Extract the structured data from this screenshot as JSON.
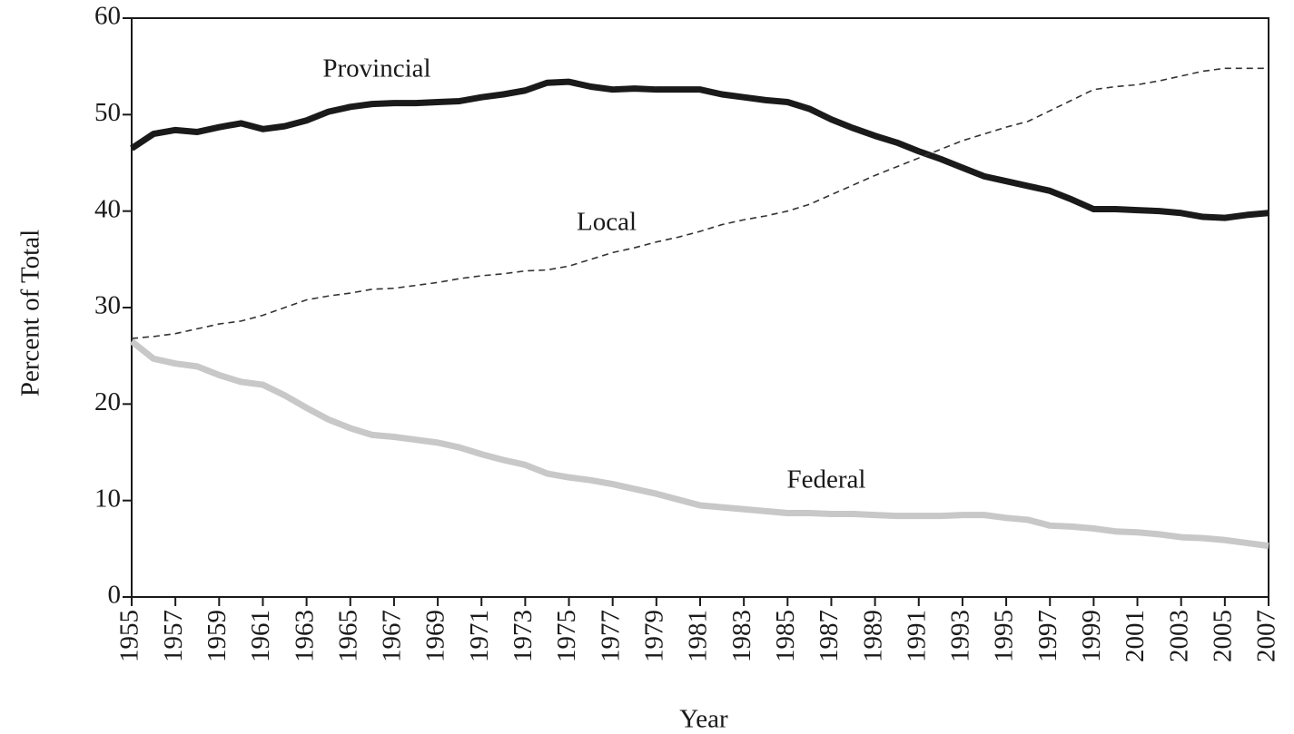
{
  "chart_data": {
    "type": "line",
    "xlabel": "Year",
    "ylabel": "Percent of Total",
    "x": [
      1955,
      1956,
      1957,
      1958,
      1959,
      1960,
      1961,
      1962,
      1963,
      1964,
      1965,
      1966,
      1967,
      1968,
      1969,
      1970,
      1971,
      1972,
      1973,
      1974,
      1975,
      1976,
      1977,
      1978,
      1979,
      1980,
      1981,
      1982,
      1983,
      1984,
      1985,
      1986,
      1987,
      1988,
      1989,
      1990,
      1991,
      1992,
      1993,
      1994,
      1995,
      1996,
      1997,
      1998,
      1999,
      2000,
      2001,
      2002,
      2003,
      2004,
      2005,
      2006,
      2007
    ],
    "series": [
      {
        "name": "Provincial",
        "color": "#1a1a1a",
        "line_style": "solid",
        "values": [
          46.5,
          48,
          48.4,
          48.2,
          48.7,
          49.1,
          48.5,
          48.8,
          49.4,
          50.3,
          50.8,
          51.1,
          51.2,
          51.2,
          51.3,
          51.4,
          51.8,
          52.1,
          52.5,
          53.3,
          53.4,
          52.9,
          52.6,
          52.7,
          52.6,
          52.6,
          52.6,
          52.1,
          51.8,
          51.5,
          51.3,
          50.6,
          49.5,
          48.6,
          47.8,
          47.1,
          46.2,
          45.4,
          44.5,
          43.6,
          43.1,
          42.6,
          42.1,
          41.2,
          40.2,
          40.2,
          40.1,
          40.0,
          39.8,
          39.4,
          39.3,
          39.6,
          39.8
        ]
      },
      {
        "name": "Local",
        "color": "#333333",
        "line_style": "dashed",
        "values": [
          26.8,
          27.0,
          27.3,
          27.8,
          28.3,
          28.6,
          29.2,
          30.0,
          30.8,
          31.2,
          31.5,
          31.9,
          32.0,
          32.3,
          32.6,
          33.0,
          33.3,
          33.5,
          33.8,
          33.9,
          34.3,
          35.0,
          35.7,
          36.2,
          36.8,
          37.3,
          37.9,
          38.6,
          39.1,
          39.5,
          40.0,
          40.7,
          41.7,
          42.7,
          43.7,
          44.6,
          45.5,
          46.4,
          47.3,
          48.0,
          48.7,
          49.3,
          50.4,
          51.5,
          52.6,
          52.9,
          53.1,
          53.5,
          54.0,
          54.5,
          54.8,
          54.8,
          54.8
        ]
      },
      {
        "name": "Federal",
        "color": "#c8c8c8",
        "line_style": "solid",
        "values": [
          26.5,
          24.7,
          24.2,
          23.9,
          23.0,
          22.3,
          22.0,
          20.9,
          19.6,
          18.4,
          17.5,
          16.8,
          16.6,
          16.3,
          16.0,
          15.5,
          14.8,
          14.2,
          13.7,
          12.8,
          12.4,
          12.1,
          11.7,
          11.2,
          10.7,
          10.1,
          9.5,
          9.3,
          9.1,
          8.9,
          8.7,
          8.7,
          8.6,
          8.6,
          8.5,
          8.4,
          8.4,
          8.4,
          8.5,
          8.5,
          8.2,
          8.0,
          7.4,
          7.3,
          7.1,
          6.8,
          6.7,
          6.5,
          6.2,
          6.1,
          5.9,
          5.6,
          5.3
        ]
      }
    ],
    "xlim": [
      1955,
      2007
    ],
    "xticks": [
      1955,
      1957,
      1959,
      1961,
      1963,
      1965,
      1967,
      1969,
      1971,
      1973,
      1975,
      1977,
      1979,
      1981,
      1983,
      1985,
      1987,
      1989,
      1991,
      1993,
      1995,
      1997,
      1999,
      2001,
      2003,
      2005,
      2007
    ],
    "ylim": [
      0,
      60
    ],
    "yticks": [
      0,
      10,
      20,
      30,
      40,
      50,
      60
    ]
  }
}
